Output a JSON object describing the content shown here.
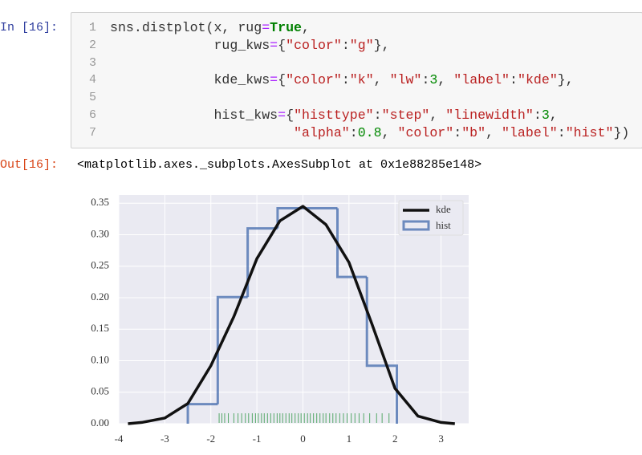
{
  "prompt_in": "In [16]:",
  "code": {
    "lines": [
      {
        "n": 1,
        "tokens": [
          {
            "t": "sns.distplot(x, rug",
            "k": "n"
          },
          {
            "t": "=",
            "k": "o"
          },
          {
            "t": "True",
            "k": "k"
          },
          {
            "t": ",",
            "k": "n"
          }
        ]
      },
      {
        "n": 2,
        "tokens": [
          {
            "t": "             rug_kws",
            "k": "n"
          },
          {
            "t": "=",
            "k": "o"
          },
          {
            "t": "{",
            "k": "n"
          },
          {
            "t": "\"color\"",
            "k": "s"
          },
          {
            "t": ":",
            "k": "n"
          },
          {
            "t": "\"g\"",
            "k": "s"
          },
          {
            "t": "},",
            "k": "n"
          }
        ]
      },
      {
        "n": 3,
        "tokens": []
      },
      {
        "n": 4,
        "tokens": [
          {
            "t": "             kde_kws",
            "k": "n"
          },
          {
            "t": "=",
            "k": "o"
          },
          {
            "t": "{",
            "k": "n"
          },
          {
            "t": "\"color\"",
            "k": "s"
          },
          {
            "t": ":",
            "k": "n"
          },
          {
            "t": "\"k\"",
            "k": "s"
          },
          {
            "t": ", ",
            "k": "n"
          },
          {
            "t": "\"lw\"",
            "k": "s"
          },
          {
            "t": ":",
            "k": "n"
          },
          {
            "t": "3",
            "k": "m"
          },
          {
            "t": ", ",
            "k": "n"
          },
          {
            "t": "\"label\"",
            "k": "s"
          },
          {
            "t": ":",
            "k": "n"
          },
          {
            "t": "\"kde\"",
            "k": "s"
          },
          {
            "t": "},",
            "k": "n"
          }
        ]
      },
      {
        "n": 5,
        "tokens": []
      },
      {
        "n": 6,
        "tokens": [
          {
            "t": "             hist_kws",
            "k": "n"
          },
          {
            "t": "=",
            "k": "o"
          },
          {
            "t": "{",
            "k": "n"
          },
          {
            "t": "\"histtype\"",
            "k": "s"
          },
          {
            "t": ":",
            "k": "n"
          },
          {
            "t": "\"step\"",
            "k": "s"
          },
          {
            "t": ", ",
            "k": "n"
          },
          {
            "t": "\"linewidth\"",
            "k": "s"
          },
          {
            "t": ":",
            "k": "n"
          },
          {
            "t": "3",
            "k": "m"
          },
          {
            "t": ",",
            "k": "n"
          }
        ]
      },
      {
        "n": 7,
        "tokens": [
          {
            "t": "                       ",
            "k": "n"
          },
          {
            "t": "\"alpha\"",
            "k": "s"
          },
          {
            "t": ":",
            "k": "n"
          },
          {
            "t": "0.8",
            "k": "m"
          },
          {
            "t": ", ",
            "k": "n"
          },
          {
            "t": "\"color\"",
            "k": "s"
          },
          {
            "t": ":",
            "k": "n"
          },
          {
            "t": "\"b\"",
            "k": "s"
          },
          {
            "t": ", ",
            "k": "n"
          },
          {
            "t": "\"label\"",
            "k": "s"
          },
          {
            "t": ":",
            "k": "n"
          },
          {
            "t": "\"hist\"",
            "k": "s"
          },
          {
            "t": "})",
            "k": "n"
          }
        ]
      }
    ]
  },
  "prompt_out": "Out[16]:",
  "output": "<matplotlib.axes._subplots.AxesSubplot at 0x1e88285e148>",
  "chart_data": {
    "type": "distplot",
    "xlim": [
      -4,
      3.6
    ],
    "ylim": [
      0,
      0.363
    ],
    "xticks": [
      -4,
      -3,
      -2,
      -1,
      0,
      1,
      2,
      3
    ],
    "yticks": [
      {
        "value": 0,
        "label": "0.00"
      },
      {
        "value": 0.05,
        "label": "0.05"
      },
      {
        "value": 0.1,
        "label": "0.10"
      },
      {
        "value": 0.15,
        "label": "0.15"
      },
      {
        "value": 0.2,
        "label": "0.20"
      },
      {
        "value": 0.25,
        "label": "0.25"
      },
      {
        "value": 0.3,
        "label": "0.30"
      },
      {
        "value": 0.35,
        "label": "0.35"
      }
    ],
    "grid": true,
    "legend": "upper right",
    "kde": {
      "name": "kde",
      "color": "#111111",
      "x": [
        -3.8,
        -3.5,
        -3.0,
        -2.5,
        -2.0,
        -1.5,
        -1.0,
        -0.5,
        0,
        0.5,
        1.0,
        1.5,
        2.0,
        2.5,
        3.0,
        3.3
      ],
      "values": [
        0.0,
        0.002,
        0.009,
        0.032,
        0.092,
        0.17,
        0.262,
        0.322,
        0.345,
        0.316,
        0.256,
        0.158,
        0.056,
        0.012,
        0.002,
        0.0
      ]
    },
    "hist": {
      "name": "hist",
      "color": "#4c72b0",
      "alpha": 0.8,
      "bins": [
        -2.5,
        -1.85,
        -1.2,
        -0.55,
        0.1,
        0.75,
        1.39,
        2.04
      ],
      "values": [
        0.031,
        0.201,
        0.31,
        0.342,
        0.342,
        0.233,
        0.092
      ]
    },
    "rug": {
      "color": "#55a868",
      "x": [
        -1.82,
        -1.76,
        -1.7,
        -1.62,
        -1.5,
        -1.41,
        -1.33,
        -1.25,
        -1.18,
        -1.1,
        -1.03,
        -0.97,
        -0.9,
        -0.84,
        -0.77,
        -0.7,
        -0.63,
        -0.56,
        -0.5,
        -0.44,
        -0.37,
        -0.3,
        -0.24,
        -0.17,
        -0.1,
        -0.04,
        0.03,
        0.1,
        0.16,
        0.23,
        0.3,
        0.37,
        0.44,
        0.5,
        0.58,
        0.65,
        0.72,
        0.8,
        0.88,
        0.96,
        1.05,
        1.13,
        1.22,
        1.32,
        1.45,
        1.6,
        1.72,
        1.87
      ]
    }
  }
}
